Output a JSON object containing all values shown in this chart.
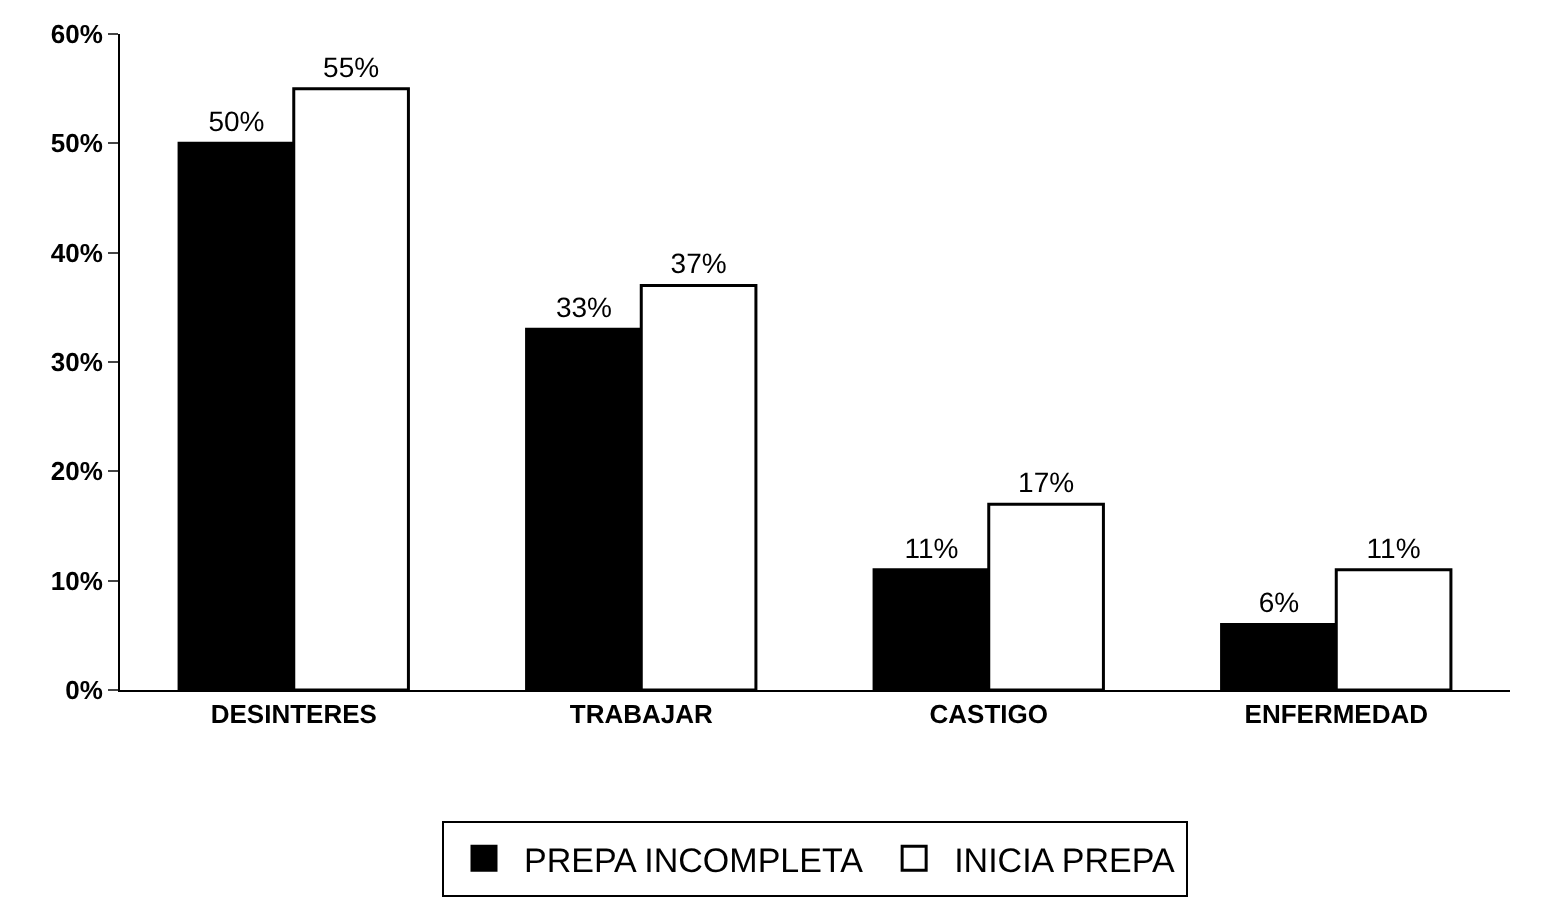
{
  "chart_data": {
    "type": "bar",
    "categories": [
      "DESINTERES",
      "TRABAJAR",
      "CASTIGO",
      "ENFERMEDAD"
    ],
    "series": [
      {
        "name": "PREPA INCOMPLETA",
        "color": "#000000",
        "values": [
          50,
          33,
          11,
          6
        ],
        "value_labels": [
          "50%",
          "33%",
          "11%",
          "6%"
        ]
      },
      {
        "name": "INICIA PREPA",
        "color": "#ffffff",
        "values": [
          55,
          37,
          17,
          11
        ],
        "value_labels": [
          "55%",
          "37%",
          "17%",
          "11%"
        ]
      }
    ],
    "ylim": [
      0,
      60
    ],
    "yticks": [
      {
        "value": 0,
        "label": "0%"
      },
      {
        "value": 10,
        "label": "10%"
      },
      {
        "value": 20,
        "label": "20%"
      },
      {
        "value": 30,
        "label": "30%"
      },
      {
        "value": 40,
        "label": "40%"
      },
      {
        "value": 50,
        "label": "50%"
      },
      {
        "value": 60,
        "label": "60%"
      }
    ],
    "grid": false,
    "legend": "bottom"
  }
}
